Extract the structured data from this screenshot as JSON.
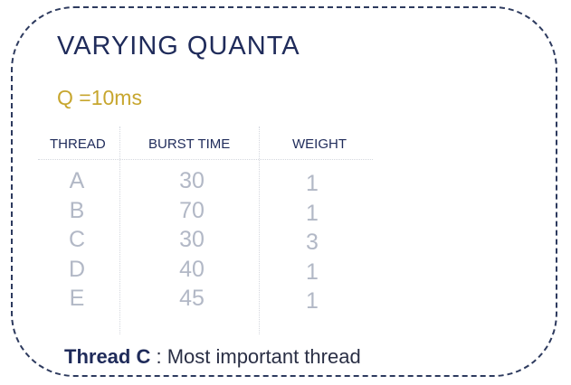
{
  "slide": {
    "title": "VARYING QUANTA",
    "quanta": "Q =10ms",
    "table": {
      "headers": {
        "thread": "THREAD",
        "burst": "BURST TIME",
        "weight": "WEIGHT"
      },
      "rows": [
        {
          "thread": "A",
          "burst": "30",
          "weight": "1"
        },
        {
          "thread": "B",
          "burst": "70",
          "weight": "1"
        },
        {
          "thread": "C",
          "burst": "30",
          "weight": "3"
        },
        {
          "thread": "D",
          "burst": "40",
          "weight": "1"
        },
        {
          "thread": "E",
          "burst": "45",
          "weight": "1"
        }
      ]
    },
    "footer": {
      "label": "Thread C",
      "text": " : Most important thread"
    },
    "colors": {
      "title": "#1f2b5a",
      "quanta": "#c7a62e",
      "values": "#b2b8c6",
      "border": "#2d3a5e"
    }
  }
}
